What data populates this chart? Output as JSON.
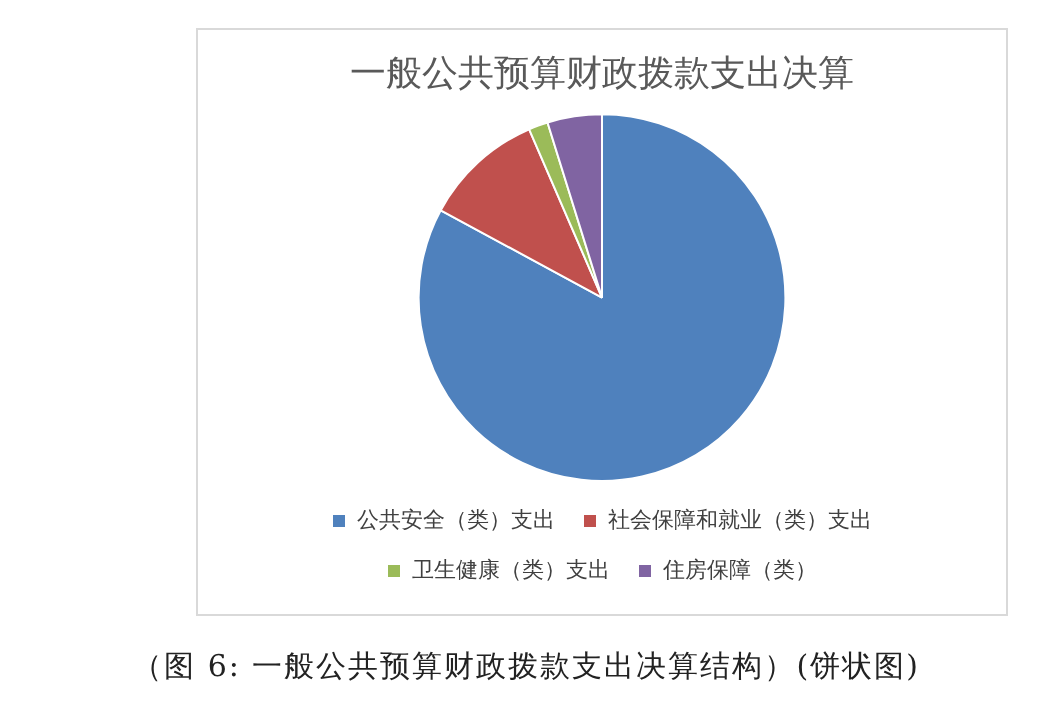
{
  "chart_data": {
    "type": "pie",
    "title": "一般公共预算财政拨款支出决算",
    "categories": [
      "公共安全（类）支出",
      "社会保障和就业（类）支出",
      "卫生健康（类）支出",
      "住房保障（类）"
    ],
    "values": [
      82.9,
      10.6,
      1.7,
      4.8
    ],
    "colors": [
      "#4f81bd",
      "#c0504d",
      "#9bbb59",
      "#8064a2"
    ],
    "legend": "bottom",
    "annotations": [
      "（图 6: 一般公共预算财政拨款支出决算结构）(饼状图)"
    ]
  }
}
